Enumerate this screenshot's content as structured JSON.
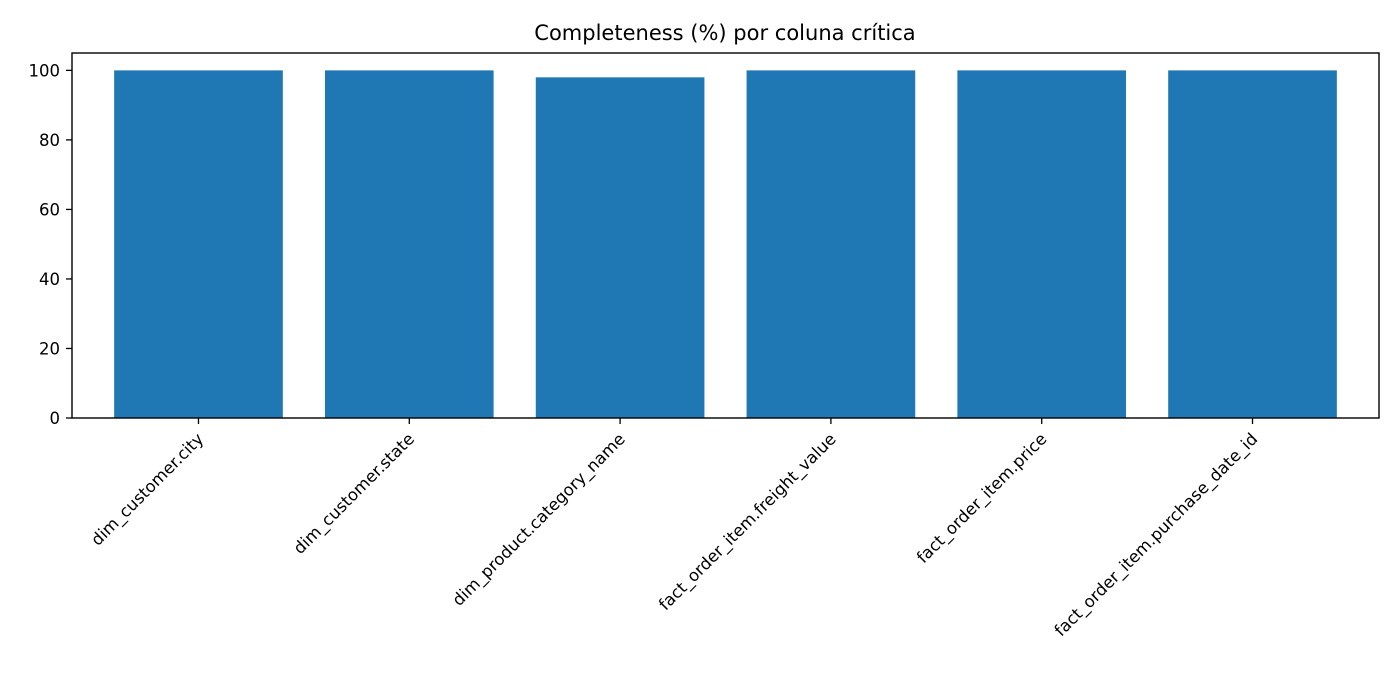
{
  "chart_data": {
    "type": "bar",
    "title": "Completeness (%) por coluna crítica",
    "xlabel": "",
    "ylabel": "",
    "categories": [
      "dim_customer.city",
      "dim_customer.state",
      "dim_product.category_name",
      "fact_order_item.freight_value",
      "fact_order_item.price",
      "fact_order_item.purchase_date_id"
    ],
    "values": [
      100,
      100,
      98,
      100,
      100,
      100
    ],
    "ylim": [
      0,
      105
    ],
    "yticks": [
      0,
      20,
      40,
      60,
      80,
      100
    ],
    "grid": false,
    "bar_color": "#1f77b4"
  }
}
